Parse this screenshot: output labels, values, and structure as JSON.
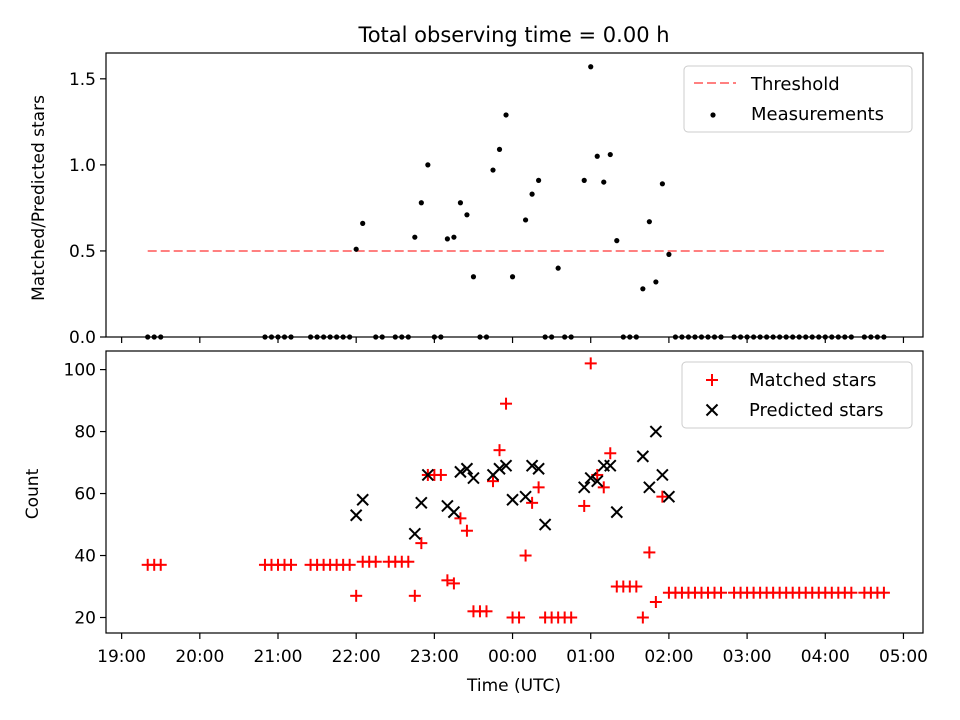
{
  "chart_data": [
    {
      "type": "scatter",
      "title": "Total observing time = 0.00 h",
      "xlabel": "",
      "ylabel": "Matched/Predicted stars",
      "ylim": [
        0,
        1.65
      ],
      "xlim": [
        18.8,
        5.25
      ],
      "x_tick_values": [
        19,
        20,
        21,
        22,
        23,
        0,
        1,
        2,
        3,
        4,
        5
      ],
      "x_tick_labels_visible": false,
      "yticks": [
        0.0,
        0.5,
        1.0,
        1.5
      ],
      "ytick_labels": [
        "0.0",
        "0.5",
        "1.0",
        "1.5"
      ],
      "grid": false,
      "legend_position": "top-right",
      "legend": [
        {
          "label": "Threshold",
          "style": "dashed-line",
          "color": "#ff8080"
        },
        {
          "label": "Measurements",
          "style": "dot",
          "color": "#000000"
        }
      ],
      "threshold": {
        "name": "Threshold",
        "value": 0.5,
        "x_start": "19:20",
        "x_end": "04:45",
        "color": "#ff8080"
      },
      "series": [
        {
          "name": "Measurements",
          "marker": "dot",
          "color": "#000000",
          "points": [
            [
              "19:20",
              0
            ],
            [
              "19:25",
              0
            ],
            [
              "19:30",
              0
            ],
            [
              "20:50",
              0
            ],
            [
              "20:55",
              0
            ],
            [
              "21:00",
              0
            ],
            [
              "21:05",
              0
            ],
            [
              "21:10",
              0
            ],
            [
              "21:25",
              0
            ],
            [
              "21:30",
              0
            ],
            [
              "21:35",
              0
            ],
            [
              "21:40",
              0
            ],
            [
              "21:45",
              0
            ],
            [
              "21:50",
              0
            ],
            [
              "21:55",
              0
            ],
            [
              "22:00",
              0.51
            ],
            [
              "22:05",
              0.66
            ],
            [
              "22:15",
              0
            ],
            [
              "22:20",
              0
            ],
            [
              "22:30",
              0
            ],
            [
              "22:35",
              0
            ],
            [
              "22:40",
              0
            ],
            [
              "22:45",
              0.58
            ],
            [
              "22:50",
              0.78
            ],
            [
              "22:55",
              1.0
            ],
            [
              "23:00",
              0
            ],
            [
              "23:05",
              0
            ],
            [
              "23:10",
              0.57
            ],
            [
              "23:15",
              0.58
            ],
            [
              "23:20",
              0.78
            ],
            [
              "23:25",
              0.71
            ],
            [
              "23:30",
              0.35
            ],
            [
              "23:35",
              0
            ],
            [
              "23:40",
              0
            ],
            [
              "23:45",
              0.97
            ],
            [
              "23:50",
              1.09
            ],
            [
              "23:55",
              1.29
            ],
            [
              "00:00",
              0.35
            ],
            [
              "00:10",
              0.68
            ],
            [
              "00:15",
              0.83
            ],
            [
              "00:20",
              0.91
            ],
            [
              "00:25",
              0
            ],
            [
              "00:30",
              0
            ],
            [
              "00:35",
              0.4
            ],
            [
              "00:40",
              0
            ],
            [
              "00:45",
              0
            ],
            [
              "00:55",
              0.91
            ],
            [
              "01:00",
              1.57
            ],
            [
              "01:05",
              1.05
            ],
            [
              "01:10",
              0.9
            ],
            [
              "01:15",
              1.06
            ],
            [
              "01:20",
              0.56
            ],
            [
              "01:25",
              0
            ],
            [
              "01:30",
              0
            ],
            [
              "01:35",
              0
            ],
            [
              "01:40",
              0.28
            ],
            [
              "01:45",
              0.67
            ],
            [
              "01:50",
              0.32
            ],
            [
              "01:55",
              0.89
            ],
            [
              "02:00",
              0.48
            ],
            [
              "02:05",
              0
            ],
            [
              "02:10",
              0
            ],
            [
              "02:15",
              0
            ],
            [
              "02:20",
              0
            ],
            [
              "02:25",
              0
            ],
            [
              "02:30",
              0
            ],
            [
              "02:35",
              0
            ],
            [
              "02:40",
              0
            ],
            [
              "02:50",
              0
            ],
            [
              "02:55",
              0
            ],
            [
              "03:00",
              0
            ],
            [
              "03:05",
              0
            ],
            [
              "03:10",
              0
            ],
            [
              "03:15",
              0
            ],
            [
              "03:20",
              0
            ],
            [
              "03:25",
              0
            ],
            [
              "03:30",
              0
            ],
            [
              "03:35",
              0
            ],
            [
              "03:40",
              0
            ],
            [
              "03:45",
              0
            ],
            [
              "03:50",
              0
            ],
            [
              "03:55",
              0
            ],
            [
              "04:00",
              0
            ],
            [
              "04:05",
              0
            ],
            [
              "04:10",
              0
            ],
            [
              "04:15",
              0
            ],
            [
              "04:20",
              0
            ],
            [
              "04:30",
              0
            ],
            [
              "04:35",
              0
            ],
            [
              "04:40",
              0
            ],
            [
              "04:45",
              0
            ]
          ]
        }
      ]
    },
    {
      "type": "scatter",
      "title": "",
      "xlabel": "Time (UTC)",
      "ylabel": "Count",
      "ylim": [
        15,
        106
      ],
      "xlim": [
        18.8,
        5.25
      ],
      "x_tick_values": [
        19,
        20,
        21,
        22,
        23,
        0,
        1,
        2,
        3,
        4,
        5
      ],
      "xtick_labels": [
        "19:00",
        "20:00",
        "21:00",
        "22:00",
        "23:00",
        "00:00",
        "01:00",
        "02:00",
        "03:00",
        "04:00",
        "05:00"
      ],
      "yticks": [
        20,
        40,
        60,
        80,
        100
      ],
      "ytick_labels": [
        "20",
        "40",
        "60",
        "80",
        "100"
      ],
      "grid": false,
      "legend_position": "top-right",
      "legend": [
        {
          "label": "Matched stars",
          "style": "plus",
          "color": "#ff0000"
        },
        {
          "label": "Predicted stars",
          "style": "x",
          "color": "#000000"
        }
      ],
      "series": [
        {
          "name": "Matched stars",
          "marker": "plus",
          "color": "#ff0000",
          "points": [
            [
              "19:20",
              37
            ],
            [
              "19:25",
              37
            ],
            [
              "19:30",
              37
            ],
            [
              "20:50",
              37
            ],
            [
              "20:55",
              37
            ],
            [
              "21:00",
              37
            ],
            [
              "21:05",
              37
            ],
            [
              "21:10",
              37
            ],
            [
              "21:25",
              37
            ],
            [
              "21:30",
              37
            ],
            [
              "21:35",
              37
            ],
            [
              "21:40",
              37
            ],
            [
              "21:45",
              37
            ],
            [
              "21:50",
              37
            ],
            [
              "21:55",
              37
            ],
            [
              "22:00",
              27
            ],
            [
              "22:05",
              38
            ],
            [
              "22:10",
              38
            ],
            [
              "22:15",
              38
            ],
            [
              "22:25",
              38
            ],
            [
              "22:30",
              38
            ],
            [
              "22:35",
              38
            ],
            [
              "22:40",
              38
            ],
            [
              "22:45",
              27
            ],
            [
              "22:50",
              44
            ],
            [
              "22:55",
              66
            ],
            [
              "23:00",
              66
            ],
            [
              "23:05",
              66
            ],
            [
              "23:10",
              32
            ],
            [
              "23:15",
              31
            ],
            [
              "23:20",
              52
            ],
            [
              "23:25",
              48
            ],
            [
              "23:30",
              22
            ],
            [
              "23:35",
              22
            ],
            [
              "23:40",
              22
            ],
            [
              "23:45",
              64
            ],
            [
              "23:50",
              74
            ],
            [
              "23:55",
              89
            ],
            [
              "00:00",
              20
            ],
            [
              "00:05",
              20
            ],
            [
              "00:10",
              40
            ],
            [
              "00:15",
              57
            ],
            [
              "00:20",
              62
            ],
            [
              "00:25",
              20
            ],
            [
              "00:30",
              20
            ],
            [
              "00:35",
              20
            ],
            [
              "00:40",
              20
            ],
            [
              "00:45",
              20
            ],
            [
              "00:55",
              56
            ],
            [
              "01:00",
              102
            ],
            [
              "01:05",
              66
            ],
            [
              "01:10",
              62
            ],
            [
              "01:15",
              73
            ],
            [
              "01:20",
              30
            ],
            [
              "01:25",
              30
            ],
            [
              "01:30",
              30
            ],
            [
              "01:35",
              30
            ],
            [
              "01:40",
              20
            ],
            [
              "01:45",
              41
            ],
            [
              "01:50",
              25
            ],
            [
              "01:55",
              59
            ],
            [
              "02:00",
              28
            ],
            [
              "02:05",
              28
            ],
            [
              "02:10",
              28
            ],
            [
              "02:15",
              28
            ],
            [
              "02:20",
              28
            ],
            [
              "02:25",
              28
            ],
            [
              "02:30",
              28
            ],
            [
              "02:35",
              28
            ],
            [
              "02:40",
              28
            ],
            [
              "02:50",
              28
            ],
            [
              "02:55",
              28
            ],
            [
              "03:00",
              28
            ],
            [
              "03:05",
              28
            ],
            [
              "03:10",
              28
            ],
            [
              "03:15",
              28
            ],
            [
              "03:20",
              28
            ],
            [
              "03:25",
              28
            ],
            [
              "03:30",
              28
            ],
            [
              "03:35",
              28
            ],
            [
              "03:40",
              28
            ],
            [
              "03:45",
              28
            ],
            [
              "03:50",
              28
            ],
            [
              "03:55",
              28
            ],
            [
              "04:00",
              28
            ],
            [
              "04:05",
              28
            ],
            [
              "04:10",
              28
            ],
            [
              "04:15",
              28
            ],
            [
              "04:20",
              28
            ],
            [
              "04:30",
              28
            ],
            [
              "04:35",
              28
            ],
            [
              "04:40",
              28
            ],
            [
              "04:45",
              28
            ]
          ]
        },
        {
          "name": "Predicted stars",
          "marker": "x",
          "color": "#000000",
          "points": [
            [
              "22:00",
              53
            ],
            [
              "22:05",
              58
            ],
            [
              "22:45",
              47
            ],
            [
              "22:50",
              57
            ],
            [
              "22:55",
              66
            ],
            [
              "23:10",
              56
            ],
            [
              "23:15",
              54
            ],
            [
              "23:20",
              67
            ],
            [
              "23:25",
              68
            ],
            [
              "23:30",
              65
            ],
            [
              "23:45",
              66
            ],
            [
              "23:50",
              68
            ],
            [
              "23:55",
              69
            ],
            [
              "00:00",
              58
            ],
            [
              "00:10",
              59
            ],
            [
              "00:15",
              69
            ],
            [
              "00:20",
              68
            ],
            [
              "00:25",
              50
            ],
            [
              "00:55",
              62
            ],
            [
              "01:00",
              65
            ],
            [
              "01:05",
              64
            ],
            [
              "01:10",
              69
            ],
            [
              "01:15",
              69
            ],
            [
              "01:20",
              54
            ],
            [
              "01:40",
              72
            ],
            [
              "01:45",
              62
            ],
            [
              "01:50",
              80
            ],
            [
              "01:55",
              66
            ],
            [
              "02:00",
              59
            ]
          ]
        }
      ]
    }
  ]
}
